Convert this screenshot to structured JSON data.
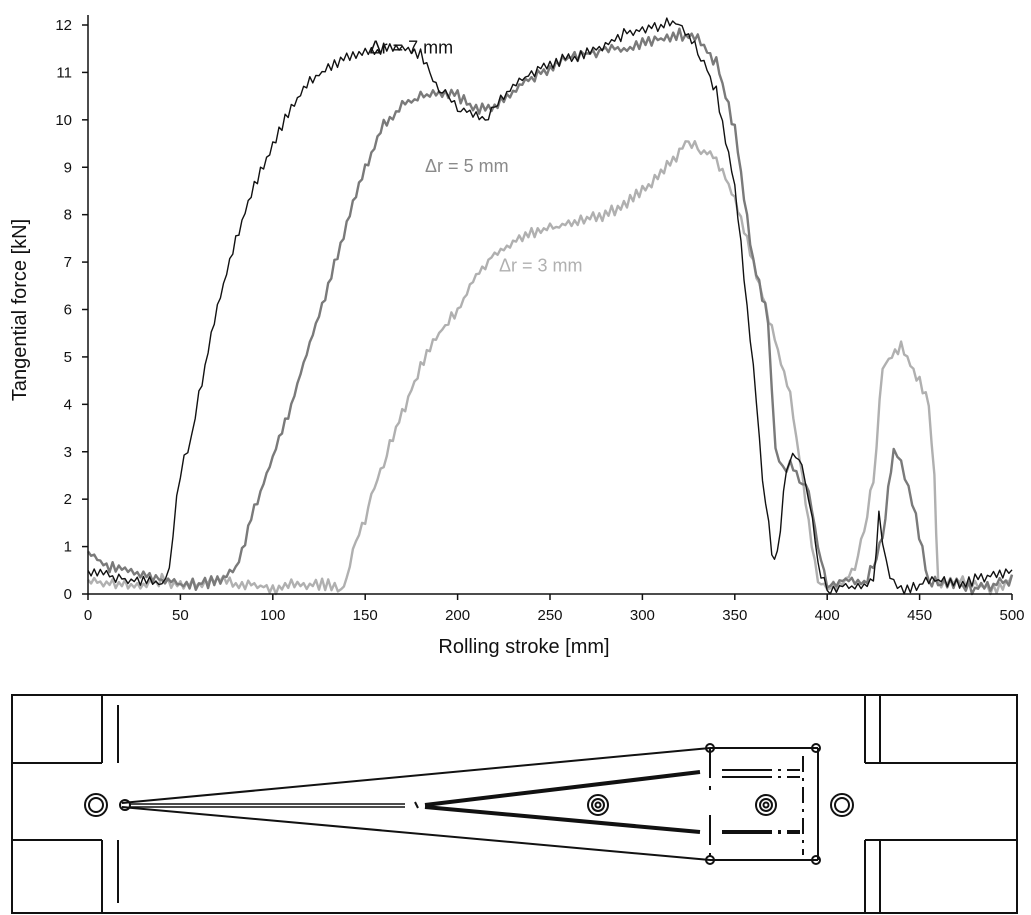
{
  "chart_data": {
    "type": "line",
    "xlabel": "Rolling stroke [mm]",
    "ylabel": "Tangential force [kN]",
    "xlim": [
      0,
      500
    ],
    "ylim": [
      0,
      12
    ],
    "xticks": [
      0,
      50,
      100,
      150,
      200,
      250,
      300,
      350,
      400,
      450,
      500
    ],
    "yticks": [
      0,
      1,
      2,
      3,
      4,
      5,
      6,
      7,
      8,
      9,
      10,
      11,
      12
    ],
    "grid": false,
    "legend": "inline labels",
    "series": [
      {
        "name": "Δr = 7 mm",
        "color": "#111111",
        "x": [
          0,
          10,
          20,
          30,
          40,
          44,
          48,
          52,
          56,
          60,
          70,
          80,
          90,
          100,
          110,
          120,
          130,
          140,
          150,
          160,
          170,
          180,
          185,
          190,
          195,
          200,
          210,
          215,
          220,
          230,
          240,
          250,
          260,
          270,
          280,
          290,
          300,
          310,
          318,
          325,
          330,
          340,
          350,
          360,
          365,
          370,
          373,
          378,
          383,
          388,
          392,
          395,
          400,
          410,
          420,
          425,
          428,
          432,
          436,
          440,
          450,
          460,
          470,
          480,
          490,
          500
        ],
        "y": [
          0.5,
          0.4,
          0.3,
          0.3,
          0.2,
          0.5,
          2.0,
          2.9,
          3.3,
          4.2,
          6.0,
          7.5,
          8.6,
          9.5,
          10.3,
          10.8,
          11.1,
          11.3,
          11.4,
          11.5,
          11.5,
          11.4,
          11.1,
          10.6,
          10.5,
          10.3,
          10.1,
          10.0,
          10.3,
          10.7,
          11.0,
          11.2,
          11.3,
          11.4,
          11.6,
          11.8,
          11.9,
          12.0,
          12.1,
          11.8,
          11.5,
          10.6,
          8.6,
          4.8,
          2.5,
          0.9,
          0.8,
          2.7,
          3.0,
          2.5,
          1.6,
          0.6,
          0.1,
          0.2,
          0.1,
          0.3,
          1.7,
          0.6,
          0.2,
          0.1,
          0.2,
          0.3,
          0.2,
          0.3,
          0.4,
          0.5
        ]
      },
      {
        "name": "Δr = 5 mm",
        "color": "#7a7a7a",
        "x": [
          0,
          10,
          20,
          30,
          40,
          50,
          60,
          70,
          80,
          90,
          100,
          110,
          120,
          130,
          140,
          150,
          160,
          170,
          180,
          190,
          200,
          210,
          220,
          230,
          240,
          250,
          260,
          270,
          280,
          290,
          300,
          310,
          320,
          330,
          340,
          350,
          360,
          368,
          372,
          376,
          380,
          385,
          390,
          395,
          400,
          410,
          420,
          425,
          430,
          433,
          436,
          440,
          444,
          448,
          455,
          460,
          470,
          480,
          490,
          500
        ],
        "y": [
          0.9,
          0.6,
          0.5,
          0.4,
          0.3,
          0.2,
          0.2,
          0.3,
          0.5,
          1.8,
          2.9,
          4.0,
          5.3,
          6.5,
          7.8,
          9.0,
          9.9,
          10.3,
          10.5,
          10.6,
          10.5,
          10.2,
          10.3,
          10.6,
          10.9,
          11.1,
          11.3,
          11.4,
          11.5,
          11.5,
          11.6,
          11.7,
          11.8,
          11.7,
          11.2,
          9.8,
          7.0,
          5.8,
          3.0,
          2.6,
          2.8,
          2.4,
          2.2,
          1.0,
          0.2,
          0.3,
          0.2,
          0.6,
          1.2,
          2.2,
          3.0,
          2.8,
          2.2,
          1.6,
          0.2,
          0.3,
          0.2,
          0.1,
          0.2,
          0.3
        ]
      },
      {
        "name": "Δr = 3 mm",
        "color": "#b0b0b0",
        "x": [
          0,
          10,
          20,
          30,
          40,
          50,
          60,
          70,
          80,
          90,
          100,
          110,
          120,
          130,
          137,
          140,
          145,
          150,
          155,
          160,
          170,
          180,
          190,
          200,
          210,
          220,
          230,
          240,
          250,
          260,
          270,
          280,
          290,
          300,
          310,
          320,
          325,
          330,
          340,
          350,
          360,
          370,
          380,
          390,
          395,
          400,
          410,
          415,
          420,
          425,
          430,
          440,
          450,
          455,
          458,
          460,
          470,
          480,
          490,
          500
        ],
        "y": [
          0.3,
          0.2,
          0.2,
          0.2,
          0.3,
          0.2,
          0.2,
          0.3,
          0.2,
          0.2,
          0.1,
          0.2,
          0.2,
          0.2,
          0.1,
          0.3,
          1.2,
          1.6,
          2.3,
          2.8,
          3.8,
          4.8,
          5.5,
          6.0,
          6.7,
          7.2,
          7.4,
          7.6,
          7.7,
          7.8,
          7.9,
          8.0,
          8.2,
          8.5,
          8.9,
          9.3,
          9.6,
          9.4,
          9.2,
          8.3,
          7.0,
          5.6,
          4.2,
          1.5,
          0.3,
          0.1,
          0.3,
          0.6,
          1.4,
          2.4,
          4.8,
          5.2,
          4.5,
          4.0,
          2.5,
          0.2,
          0.3,
          0.2,
          0.1,
          0.3
        ]
      }
    ],
    "series_labels": [
      {
        "text": "Δr = 7 mm",
        "at_x": 200,
        "at_y": 11.4,
        "color": "#111111"
      },
      {
        "text": "Δr = 5 mm",
        "at_x": 230,
        "at_y": 8.9,
        "color": "#8a8a8a"
      },
      {
        "text": "Δr = 3 mm",
        "at_x": 270,
        "at_y": 6.8,
        "color": "#b0b0b0"
      }
    ]
  },
  "colors": {
    "axis": "#111111",
    "drawing_stroke": "#111111"
  }
}
